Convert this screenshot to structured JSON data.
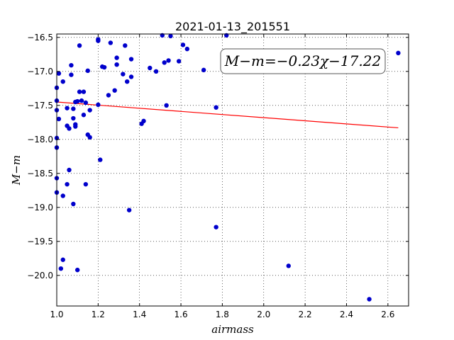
{
  "chart_data": {
    "type": "scatter",
    "title": "2021-01-13_201551",
    "xlabel": "airmass",
    "ylabel": "M−m",
    "xlim": [
      1.0,
      2.7
    ],
    "ylim": [
      -20.45,
      -16.45
    ],
    "x_ticks": [
      1.0,
      1.2,
      1.4,
      1.6,
      1.8,
      2.0,
      2.2,
      2.4,
      2.6
    ],
    "x_tick_labels": [
      "1.0",
      "1.2",
      "1.4",
      "1.6",
      "1.8",
      "2.0",
      "2.2",
      "2.4",
      "2.6"
    ],
    "y_ticks": [
      -16.5,
      -17.0,
      -17.5,
      -18.0,
      -18.5,
      -19.0,
      -19.5,
      -20.0
    ],
    "y_tick_labels": [
      "−16.5",
      "−17.0",
      "−17.5",
      "−18.0",
      "−18.5",
      "−19.0",
      "−19.5",
      "−20.0"
    ],
    "grid": true,
    "annotation": "M−m=−0.23χ−17.22",
    "annotation_position": "top-right",
    "fit_line": {
      "slope": -0.23,
      "intercept": -17.22,
      "x_range": [
        1.0,
        2.65
      ],
      "color": "#ff0000"
    },
    "point_color": "#0000cc",
    "points": [
      [
        1.0,
        -17.24
      ],
      [
        1.0,
        -17.43
      ],
      [
        1.0,
        -17.57
      ],
      [
        1.0,
        -17.98
      ],
      [
        1.0,
        -18.12
      ],
      [
        1.0,
        -18.57
      ],
      [
        1.0,
        -18.78
      ],
      [
        1.01,
        -17.03
      ],
      [
        1.01,
        -17.7
      ],
      [
        1.02,
        -19.9
      ],
      [
        1.03,
        -19.77
      ],
      [
        1.03,
        -17.15
      ],
      [
        1.03,
        -18.83
      ],
      [
        1.05,
        -17.54
      ],
      [
        1.05,
        -17.8
      ],
      [
        1.05,
        -18.66
      ],
      [
        1.06,
        -17.84
      ],
      [
        1.06,
        -18.45
      ],
      [
        1.07,
        -16.91
      ],
      [
        1.07,
        -17.05
      ],
      [
        1.08,
        -17.69
      ],
      [
        1.08,
        -17.55
      ],
      [
        1.08,
        -18.95
      ],
      [
        1.09,
        -17.45
      ],
      [
        1.09,
        -17.78
      ],
      [
        1.09,
        -17.81
      ],
      [
        1.1,
        -17.44
      ],
      [
        1.1,
        -19.92
      ],
      [
        1.11,
        -16.62
      ],
      [
        1.11,
        -17.3
      ],
      [
        1.12,
        -17.43
      ],
      [
        1.13,
        -17.3
      ],
      [
        1.13,
        -17.64
      ],
      [
        1.14,
        -17.46
      ],
      [
        1.14,
        -18.66
      ],
      [
        1.15,
        -16.99
      ],
      [
        1.15,
        -17.93
      ],
      [
        1.16,
        -17.97
      ],
      [
        1.16,
        -17.57
      ],
      [
        1.2,
        -16.53
      ],
      [
        1.2,
        -16.55
      ],
      [
        1.2,
        -17.49
      ],
      [
        1.21,
        -18.3
      ],
      [
        1.22,
        -16.93
      ],
      [
        1.23,
        -16.94
      ],
      [
        1.25,
        -17.35
      ],
      [
        1.26,
        -16.58
      ],
      [
        1.28,
        -17.28
      ],
      [
        1.29,
        -16.8
      ],
      [
        1.29,
        -16.9
      ],
      [
        1.32,
        -17.04
      ],
      [
        1.33,
        -16.62
      ],
      [
        1.34,
        -17.15
      ],
      [
        1.35,
        -19.04
      ],
      [
        1.36,
        -17.08
      ],
      [
        1.36,
        -16.82
      ],
      [
        1.41,
        -17.77
      ],
      [
        1.42,
        -17.73
      ],
      [
        1.45,
        -16.95
      ],
      [
        1.48,
        -17.0
      ],
      [
        1.51,
        -16.47
      ],
      [
        1.52,
        -16.87
      ],
      [
        1.53,
        -17.5
      ],
      [
        1.54,
        -16.84
      ],
      [
        1.55,
        -16.48
      ],
      [
        1.59,
        -16.85
      ],
      [
        1.61,
        -16.61
      ],
      [
        1.63,
        -16.67
      ],
      [
        1.71,
        -16.98
      ],
      [
        1.77,
        -19.29
      ],
      [
        1.77,
        -17.53
      ],
      [
        1.82,
        -16.47
      ],
      [
        2.12,
        -19.86
      ],
      [
        2.51,
        -20.35
      ],
      [
        2.65,
        -16.73
      ]
    ]
  }
}
